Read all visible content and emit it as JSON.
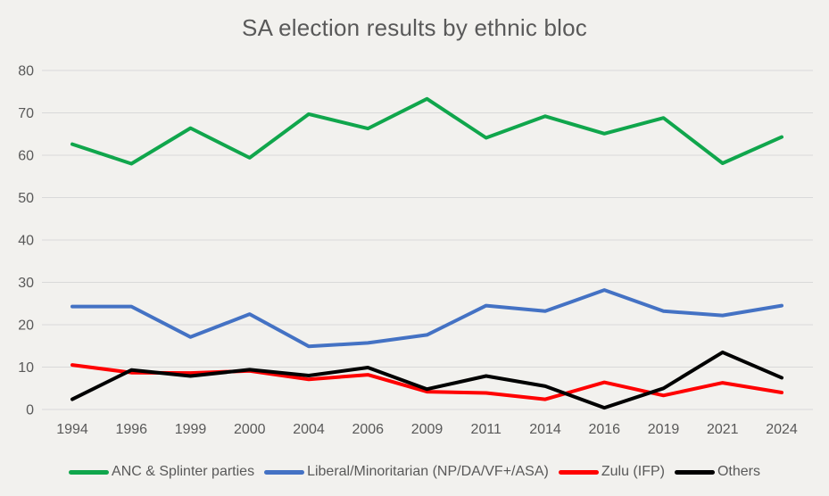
{
  "chart_data": {
    "type": "line",
    "title": "SA election results by ethnic bloc",
    "xlabel": "",
    "ylabel": "",
    "ylim": [
      0,
      80
    ],
    "yticks": [
      0,
      10,
      20,
      30,
      40,
      50,
      60,
      70,
      80
    ],
    "grid": true,
    "legend_position": "bottom",
    "categories": [
      "1994",
      "1996",
      "1999",
      "2000",
      "2004",
      "2006",
      "2009",
      "2011",
      "2014",
      "2016",
      "2019",
      "2021",
      "2024"
    ],
    "series": [
      {
        "name": "ANC & Splinter parties",
        "color": "#10a64c",
        "values": [
          62.6,
          58.0,
          66.4,
          59.4,
          69.7,
          66.3,
          73.3,
          64.1,
          69.2,
          65.1,
          68.8,
          58.1,
          64.3
        ]
      },
      {
        "name": "Liberal/Minoritarian (NP/DA/VF+/ASA)",
        "color": "#4472c4",
        "values": [
          24.3,
          24.3,
          17.1,
          22.5,
          14.9,
          15.7,
          17.6,
          24.5,
          23.2,
          28.2,
          23.2,
          22.2,
          24.5
        ]
      },
      {
        "name": "Zulu (IFP)",
        "color": "#ff0000",
        "values": [
          10.5,
          8.7,
          8.6,
          9.1,
          7.1,
          8.2,
          4.2,
          3.9,
          2.4,
          6.4,
          3.3,
          6.3,
          4.0
        ]
      },
      {
        "name": "Others",
        "color": "#000000",
        "values": [
          2.4,
          9.3,
          7.9,
          9.4,
          8.0,
          9.9,
          4.8,
          7.9,
          5.5,
          0.4,
          5.0,
          13.5,
          7.5
        ]
      }
    ]
  },
  "colors": {
    "background": "#f2f1ee",
    "gridline": "#d9d9d9",
    "text": "#595959"
  }
}
